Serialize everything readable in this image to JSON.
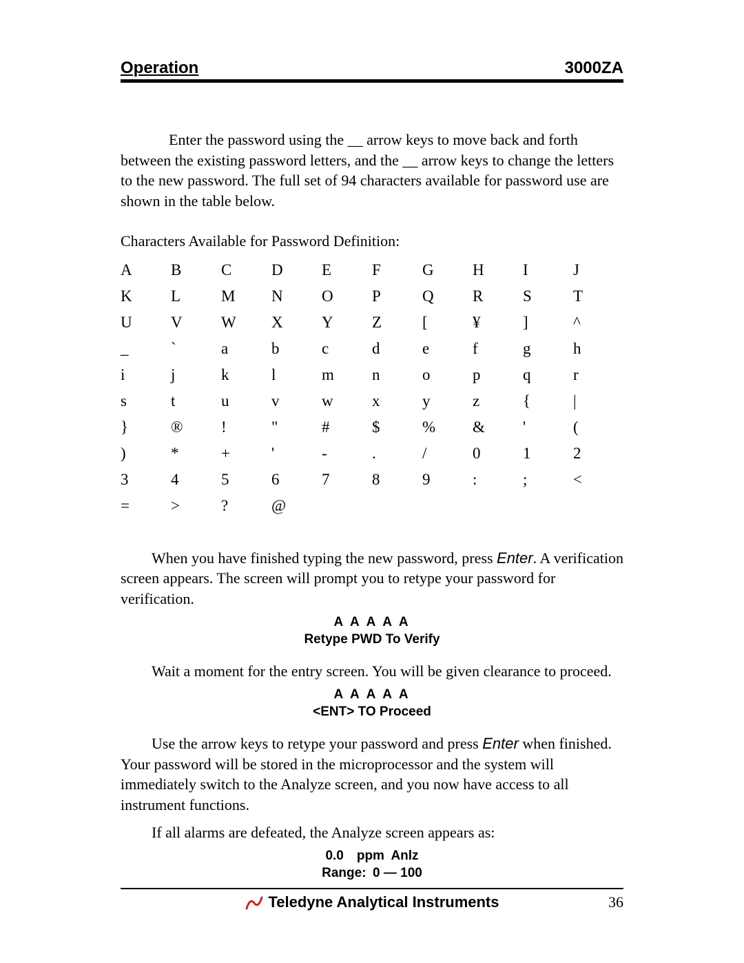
{
  "header": {
    "left": "Operation",
    "right": "3000ZA"
  },
  "paragraphs": {
    "intro": " Enter the password using the __ arrow keys to move back and forth between the existing password letters, and the __ arrow keys to change the letters to the new password. The full set of 94 characters available for password use are shown in the table below.",
    "tableTitle": "Characters Available for Password Definition:",
    "afterTable1a": "When you have finished typing the new password, press ",
    "afterTable1b": ". A verification screen appears. The screen will prompt you to retype your password for verification.",
    "afterDisplay1": "Wait a moment for the entry screen. You will be given clearance to proceed.",
    "afterDisplay2a": "Use the arrow keys to retype your password and press ",
    "afterDisplay2b": " when finished. Your password will be stored in the microprocessor and the system will immediately switch to the Analyze screen, and you now have access to all instrument functions.",
    "afterDisplay3": "If all alarms are defeated, the Analyze screen appears as:"
  },
  "enterWord": "Enter",
  "charTable": {
    "rows": [
      [
        "A",
        "B",
        "C",
        "D",
        "E",
        "F",
        "G",
        "H",
        "I",
        "J"
      ],
      [
        "K",
        "L",
        "M",
        "N",
        "O",
        "P",
        "Q",
        "R",
        "S",
        "T"
      ],
      [
        "U",
        "V",
        "W",
        "X",
        "Y",
        "Z",
        "[",
        "¥",
        "]",
        "^"
      ],
      [
        "_",
        "`",
        "a",
        "b",
        "c",
        "d",
        "e",
        "f",
        "g",
        "h"
      ],
      [
        "i",
        "j",
        "k",
        "l",
        "m",
        "n",
        "o",
        "p",
        "q",
        "r"
      ],
      [
        "s",
        "t",
        "u",
        "v",
        "w",
        "x",
        "y",
        "z",
        "{",
        "|"
      ],
      [
        "}",
        "®",
        "!",
        "\"",
        "#",
        "$",
        "%",
        "&",
        "'",
        "("
      ],
      [
        ")",
        "*",
        "+",
        "'",
        "-",
        ".",
        "/",
        "0",
        "1",
        "2"
      ],
      [
        "3",
        "4",
        "5",
        "6",
        "7",
        "8",
        "9",
        ":",
        ";",
        "<"
      ],
      [
        "=",
        ">",
        "?",
        "@",
        "",
        "",
        "",
        "",
        "",
        ""
      ]
    ]
  },
  "displays": {
    "d1line1": "A A A A A",
    "d1line2": "Retype PWD To Verify",
    "d2line1": "A A A A A",
    "d2line2": "<ENT> TO Proceed",
    "d3line1": "0.0 ppm Anlz",
    "d3line2": "Range: 0 — 100"
  },
  "footer": {
    "company": "Teledyne Analytical Instruments",
    "page": "36"
  },
  "colors": {
    "text": "#000000",
    "background": "#ffffff",
    "iconRed": "#c62828"
  }
}
